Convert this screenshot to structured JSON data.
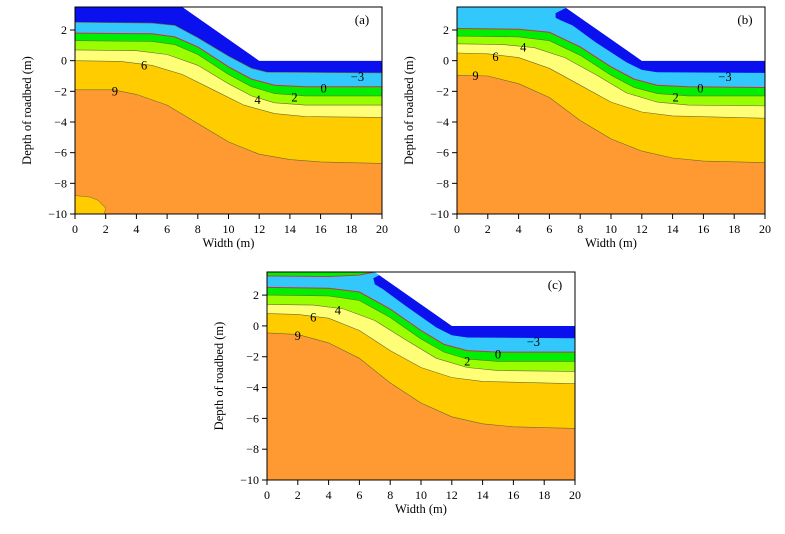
{
  "chart_data": [
    {
      "type": "heatmap",
      "subtype": "filled-contour",
      "panel": "(a)",
      "xlabel": "Width (m)",
      "ylabel": "Depth of roadbed (m)",
      "xlim": [
        0,
        20
      ],
      "ylim": [
        -10,
        3.5
      ],
      "xticks": [
        0,
        2,
        4,
        6,
        8,
        10,
        12,
        14,
        16,
        18,
        20
      ],
      "yticks": [
        2,
        0,
        -2,
        -4,
        -6,
        -8,
        -10
      ],
      "embankment_profile": [
        [
          0,
          3.5
        ],
        [
          7,
          3.5
        ],
        [
          12,
          0
        ],
        [
          20,
          0
        ]
      ],
      "band_colors": [
        "#0a10ee",
        "#33c8fb",
        "#00ee00",
        "#99ff00",
        "#ffff77",
        "#ffcc00",
        "#ff9a33"
      ],
      "boundaries": [
        {
          "level": -3,
          "points": [
            [
              0,
              2.5
            ],
            [
              5,
              2.45
            ],
            [
              6.5,
              2.3
            ],
            [
              8,
              1.5
            ],
            [
              10,
              0.3
            ],
            [
              11.5,
              -0.5
            ],
            [
              12.5,
              -0.75
            ],
            [
              20,
              -0.8
            ]
          ]
        },
        {
          "level": 0,
          "zero_isotherm": true,
          "points": [
            [
              0,
              1.8
            ],
            [
              5,
              1.75
            ],
            [
              6.5,
              1.55
            ],
            [
              8,
              0.9
            ],
            [
              10,
              -0.4
            ],
            [
              11.5,
              -1.2
            ],
            [
              13,
              -1.6
            ],
            [
              15,
              -1.7
            ],
            [
              20,
              -1.7
            ]
          ]
        },
        {
          "level": 2,
          "points": [
            [
              0,
              1.3
            ],
            [
              5,
              1.25
            ],
            [
              6.5,
              1.05
            ],
            [
              8,
              0.4
            ],
            [
              10,
              -0.9
            ],
            [
              11.5,
              -1.7
            ],
            [
              13,
              -2.15
            ],
            [
              15,
              -2.3
            ],
            [
              20,
              -2.3
            ]
          ]
        },
        {
          "level": 4,
          "points": [
            [
              0,
              0.7
            ],
            [
              4,
              0.65
            ],
            [
              6,
              0.4
            ],
            [
              8,
              -0.3
            ],
            [
              10,
              -1.5
            ],
            [
              11.5,
              -2.3
            ],
            [
              13,
              -2.75
            ],
            [
              15,
              -2.9
            ],
            [
              20,
              -2.9
            ]
          ]
        },
        {
          "level": 6,
          "points": [
            [
              0,
              0.0
            ],
            [
              3,
              -0.05
            ],
            [
              5,
              -0.3
            ],
            [
              7,
              -0.9
            ],
            [
              9,
              -1.9
            ],
            [
              11,
              -2.9
            ],
            [
              13,
              -3.45
            ],
            [
              15,
              -3.65
            ],
            [
              20,
              -3.7
            ]
          ]
        },
        {
          "level": 9,
          "points": [
            [
              0,
              -1.9
            ],
            [
              2.5,
              -1.9
            ],
            [
              4,
              -2.2
            ],
            [
              6,
              -2.9
            ],
            [
              8,
              -4.1
            ],
            [
              10,
              -5.3
            ],
            [
              12,
              -6.1
            ],
            [
              14,
              -6.45
            ],
            [
              16,
              -6.6
            ],
            [
              20,
              -6.7
            ]
          ]
        }
      ],
      "islands": [
        {
          "color": "#ffcc00",
          "points": [
            [
              0,
              -8.8
            ],
            [
              1,
              -8.9
            ],
            [
              1.5,
              -9.1
            ],
            [
              2.0,
              -9.6
            ],
            [
              1.9,
              -10
            ],
            [
              0,
              -10
            ]
          ]
        }
      ],
      "contour_labels": [
        {
          "text": "6",
          "x": 4.5,
          "y": -0.3
        },
        {
          "text": "9",
          "x": 2.6,
          "y": -2.0
        },
        {
          "text": "4",
          "x": 11.9,
          "y": -2.55
        },
        {
          "text": "2",
          "x": 14.3,
          "y": -2.4
        },
        {
          "text": "0",
          "x": 16.2,
          "y": -1.8
        },
        {
          "text": "−3",
          "x": 18.4,
          "y": -1.05
        }
      ]
    },
    {
      "type": "heatmap",
      "subtype": "filled-contour",
      "panel": "(b)",
      "xlabel": "Width (m)",
      "ylabel": "Depth of roadbed (m)",
      "xlim": [
        0,
        20
      ],
      "ylim": [
        -10,
        3.5
      ],
      "xticks": [
        0,
        2,
        4,
        6,
        8,
        10,
        12,
        14,
        16,
        18,
        20
      ],
      "yticks": [
        2,
        0,
        -2,
        -4,
        -6,
        -8,
        -10
      ],
      "embankment_profile": [
        [
          0,
          3.5
        ],
        [
          7,
          3.5
        ],
        [
          12,
          0
        ],
        [
          20,
          0
        ]
      ],
      "band_colors": [
        "#0a10ee",
        "#33c8fb",
        "#00ee00",
        "#99ff00",
        "#ffff77",
        "#ffcc00",
        "#ff9a33"
      ],
      "top_band": "#33c8fb",
      "cold_zone": {
        "color": "#0a10ee",
        "points": [
          [
            6.4,
            3.1
          ],
          [
            7.0,
            3.4
          ],
          [
            7.3,
            3.5
          ],
          [
            12,
            0
          ],
          [
            20,
            0
          ],
          [
            20,
            -0.8
          ],
          [
            13,
            -0.75
          ],
          [
            12,
            -0.6
          ],
          [
            11,
            -0.1
          ],
          [
            9,
            1.2
          ],
          [
            7.5,
            2.3
          ],
          [
            6.8,
            2.6
          ],
          [
            6.4,
            2.8
          ]
        ]
      },
      "boundaries": [
        {
          "level": 0,
          "zero_isotherm": true,
          "points": [
            [
              0,
              2.1
            ],
            [
              4,
              2.05
            ],
            [
              6,
              1.85
            ],
            [
              8,
              0.9
            ],
            [
              10,
              -0.4
            ],
            [
              11.5,
              -1.2
            ],
            [
              13,
              -1.6
            ],
            [
              15,
              -1.7
            ],
            [
              20,
              -1.75
            ]
          ]
        },
        {
          "level": 2,
          "points": [
            [
              0,
              1.6
            ],
            [
              4,
              1.55
            ],
            [
              6,
              1.3
            ],
            [
              8,
              0.35
            ],
            [
              10,
              -0.95
            ],
            [
              11.5,
              -1.75
            ],
            [
              13,
              -2.15
            ],
            [
              15,
              -2.3
            ],
            [
              20,
              -2.3
            ]
          ]
        },
        {
          "level": 4,
          "points": [
            [
              0,
              1.1
            ],
            [
              3,
              1.05
            ],
            [
              5,
              0.85
            ],
            [
              7,
              0.2
            ],
            [
              9,
              -0.9
            ],
            [
              11,
              -2.1
            ],
            [
              13,
              -2.7
            ],
            [
              15,
              -2.9
            ],
            [
              20,
              -2.95
            ]
          ]
        },
        {
          "level": 6,
          "points": [
            [
              0,
              0.5
            ],
            [
              2,
              0.45
            ],
            [
              4,
              0.2
            ],
            [
              6,
              -0.5
            ],
            [
              8,
              -1.6
            ],
            [
              10,
              -2.7
            ],
            [
              12,
              -3.35
            ],
            [
              14,
              -3.6
            ],
            [
              20,
              -3.75
            ]
          ]
        },
        {
          "level": 9,
          "points": [
            [
              0,
              -0.95
            ],
            [
              2,
              -1.0
            ],
            [
              4,
              -1.5
            ],
            [
              6,
              -2.4
            ],
            [
              8,
              -3.9
            ],
            [
              10,
              -5.1
            ],
            [
              12,
              -5.9
            ],
            [
              14,
              -6.35
            ],
            [
              16,
              -6.55
            ],
            [
              20,
              -6.65
            ]
          ]
        }
      ],
      "islands": [],
      "contour_labels": [
        {
          "text": "4",
          "x": 4.3,
          "y": 0.85
        },
        {
          "text": "6",
          "x": 2.5,
          "y": 0.25
        },
        {
          "text": "9",
          "x": 1.2,
          "y": -1.0
        },
        {
          "text": "2",
          "x": 14.2,
          "y": -2.4
        },
        {
          "text": "0",
          "x": 15.8,
          "y": -1.8
        },
        {
          "text": "−3",
          "x": 17.4,
          "y": -1.05
        }
      ]
    },
    {
      "type": "heatmap",
      "subtype": "filled-contour",
      "panel": "(c)",
      "xlabel": "Width (m)",
      "ylabel": "Depth of roadbed (m)",
      "xlim": [
        0,
        20
      ],
      "ylim": [
        -10,
        3.5
      ],
      "xticks": [
        0,
        2,
        4,
        6,
        8,
        10,
        12,
        14,
        16,
        18,
        20
      ],
      "yticks": [
        2,
        0,
        -2,
        -4,
        -6,
        -8,
        -10
      ],
      "embankment_profile": [
        [
          0,
          3.5
        ],
        [
          7,
          3.5
        ],
        [
          12,
          0
        ],
        [
          20,
          0
        ]
      ],
      "band_colors": [
        "#0a10ee",
        "#33c8fb",
        "#00ee00",
        "#99ff00",
        "#ffff77",
        "#ffcc00",
        "#ff9a33"
      ],
      "top_band": "#33c8fb",
      "surface_layer": {
        "color": "#00ee00",
        "points": [
          [
            0,
            3.5
          ],
          [
            7,
            3.5
          ],
          [
            6,
            3.3
          ],
          [
            4,
            3.2
          ],
          [
            0,
            3.25
          ]
        ]
      },
      "cold_zone": {
        "color": "#0a10ee",
        "points": [
          [
            6.9,
            3.1
          ],
          [
            7.3,
            3.3
          ],
          [
            7.6,
            3.25
          ],
          [
            12,
            0
          ],
          [
            20,
            0
          ],
          [
            20,
            -0.8
          ],
          [
            13,
            -0.75
          ],
          [
            12,
            -0.6
          ],
          [
            11,
            -0.1
          ],
          [
            9,
            1.3
          ],
          [
            7.5,
            2.4
          ],
          [
            7.0,
            2.7
          ]
        ]
      },
      "boundaries": [
        {
          "level": 0,
          "zero_isotherm": true,
          "points": [
            [
              0,
              2.5
            ],
            [
              4,
              2.45
            ],
            [
              6,
              2.2
            ],
            [
              8,
              1.1
            ],
            [
              10,
              -0.3
            ],
            [
              11.5,
              -1.2
            ],
            [
              13,
              -1.6
            ],
            [
              15,
              -1.7
            ],
            [
              20,
              -1.7
            ]
          ]
        },
        {
          "level": 2,
          "points": [
            [
              0,
              2.0
            ],
            [
              4,
              1.95
            ],
            [
              6,
              1.65
            ],
            [
              8,
              0.55
            ],
            [
              10,
              -0.85
            ],
            [
              11.5,
              -1.7
            ],
            [
              13,
              -2.15
            ],
            [
              15,
              -2.3
            ],
            [
              20,
              -2.3
            ]
          ]
        },
        {
          "level": 4,
          "points": [
            [
              0,
              1.4
            ],
            [
              3,
              1.35
            ],
            [
              5,
              1.1
            ],
            [
              7,
              0.35
            ],
            [
              9,
              -0.9
            ],
            [
              11,
              -2.1
            ],
            [
              13,
              -2.7
            ],
            [
              15,
              -2.9
            ],
            [
              20,
              -2.95
            ]
          ]
        },
        {
          "level": 6,
          "points": [
            [
              0,
              0.8
            ],
            [
              2,
              0.75
            ],
            [
              4,
              0.5
            ],
            [
              6,
              -0.3
            ],
            [
              8,
              -1.6
            ],
            [
              10,
              -2.7
            ],
            [
              12,
              -3.35
            ],
            [
              14,
              -3.6
            ],
            [
              20,
              -3.75
            ]
          ]
        },
        {
          "level": 9,
          "points": [
            [
              0,
              -0.45
            ],
            [
              2,
              -0.55
            ],
            [
              4,
              -1.1
            ],
            [
              6,
              -2.1
            ],
            [
              8,
              -3.7
            ],
            [
              10,
              -5.0
            ],
            [
              12,
              -5.9
            ],
            [
              14,
              -6.35
            ],
            [
              16,
              -6.55
            ],
            [
              20,
              -6.65
            ]
          ]
        }
      ],
      "islands": [],
      "contour_labels": [
        {
          "text": "4",
          "x": 4.6,
          "y": 1.0
        },
        {
          "text": "6",
          "x": 3.0,
          "y": 0.55
        },
        {
          "text": "9",
          "x": 2.0,
          "y": -0.65
        },
        {
          "text": "2",
          "x": 13.0,
          "y": -2.3
        },
        {
          "text": "0",
          "x": 15.0,
          "y": -1.85
        },
        {
          "text": "−3",
          "x": 17.3,
          "y": -1.05
        }
      ]
    }
  ]
}
